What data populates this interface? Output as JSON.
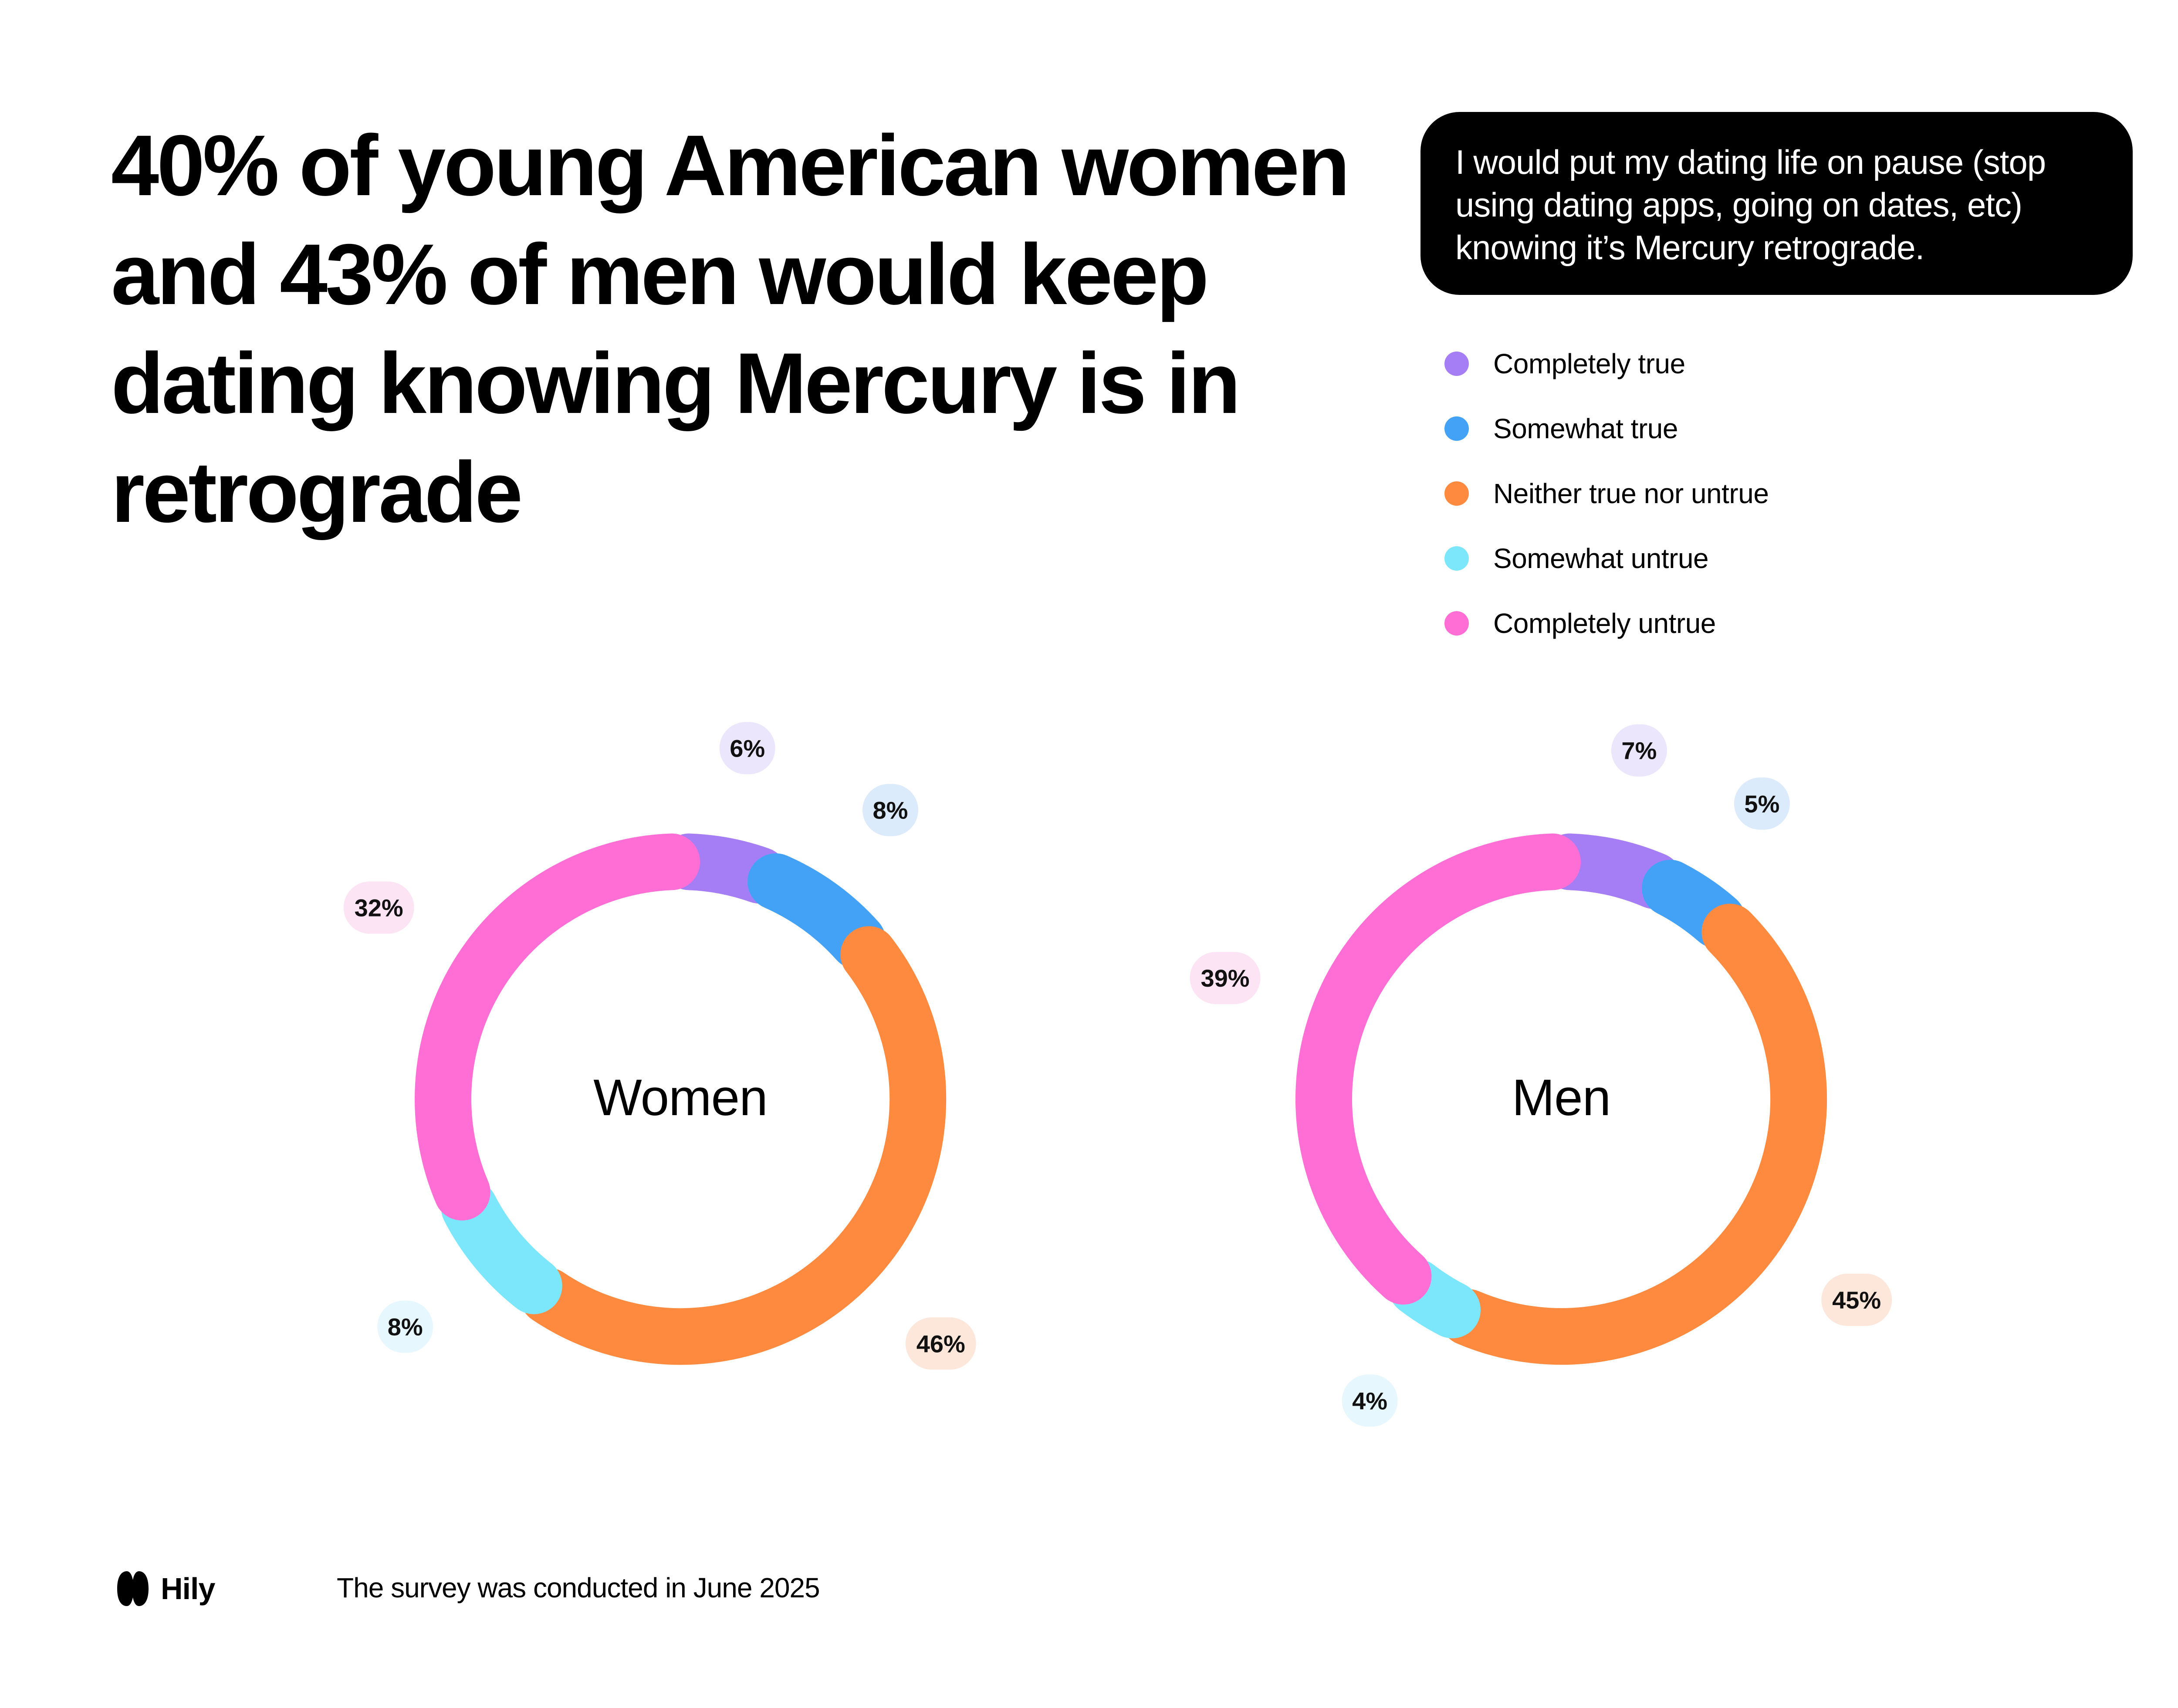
{
  "headline": "40% of young American women and 43% of men would keep dating knowing Mercury is in retrograde",
  "question": "I would put my dating life on pause (stop using dating apps, going on dates, etc) knowing it’s Mercury retrograde.",
  "chart_data": {
    "type": "donut",
    "categories": [
      "Completely true",
      "Somewhat true",
      "Neither true nor untrue",
      "Somewhat untrue",
      "Completely untrue"
    ],
    "colors": [
      "#a57ef6",
      "#44a2f6",
      "#fe8a3f",
      "#7ce7fa",
      "#ff6ed5"
    ],
    "label_backgrounds": [
      "#ece6fc",
      "#dcebfc",
      "#fde6da",
      "#e6f7fd",
      "#fde4f4"
    ],
    "legend_position": "top-right",
    "series": [
      {
        "name": "Women",
        "values": [
          6,
          8,
          46,
          8,
          32
        ],
        "value_labels": [
          "6%",
          "8%",
          "46%",
          "8%",
          "32%"
        ]
      },
      {
        "name": "Men",
        "values": [
          7,
          5,
          45,
          4,
          39
        ],
        "value_labels": [
          "7%",
          "5%",
          "45%",
          "4%",
          "39%"
        ]
      }
    ]
  },
  "brand": {
    "name": "Hily"
  },
  "footnote": "The survey was conducted in June 2025"
}
